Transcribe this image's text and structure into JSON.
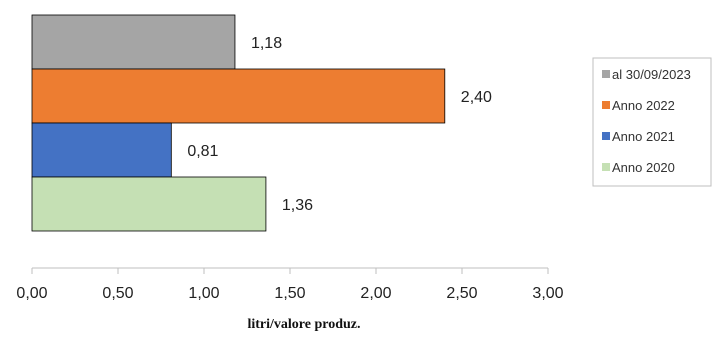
{
  "chart_data": {
    "type": "bar",
    "orientation": "horizontal",
    "title": "",
    "xlabel": "litri/valore produz.",
    "ylabel": "",
    "xlim": [
      0,
      3
    ],
    "x_ticks": [
      "0,00",
      "0,50",
      "1,00",
      "1,50",
      "2,00",
      "2,50",
      "3,00"
    ],
    "grid": false,
    "legend_position": "right",
    "series": [
      {
        "name": "al 30/09/2023",
        "value": 1.18,
        "label": "1,18",
        "color": "#a5a5a5"
      },
      {
        "name": "Anno 2022",
        "value": 2.4,
        "label": "2,40",
        "color": "#ed7d31"
      },
      {
        "name": "Anno 2021",
        "value": 0.81,
        "label": "0,81",
        "color": "#4472c4"
      },
      {
        "name": "Anno 2020",
        "value": 1.36,
        "label": "1,36",
        "color": "#c5e0b4"
      }
    ]
  }
}
